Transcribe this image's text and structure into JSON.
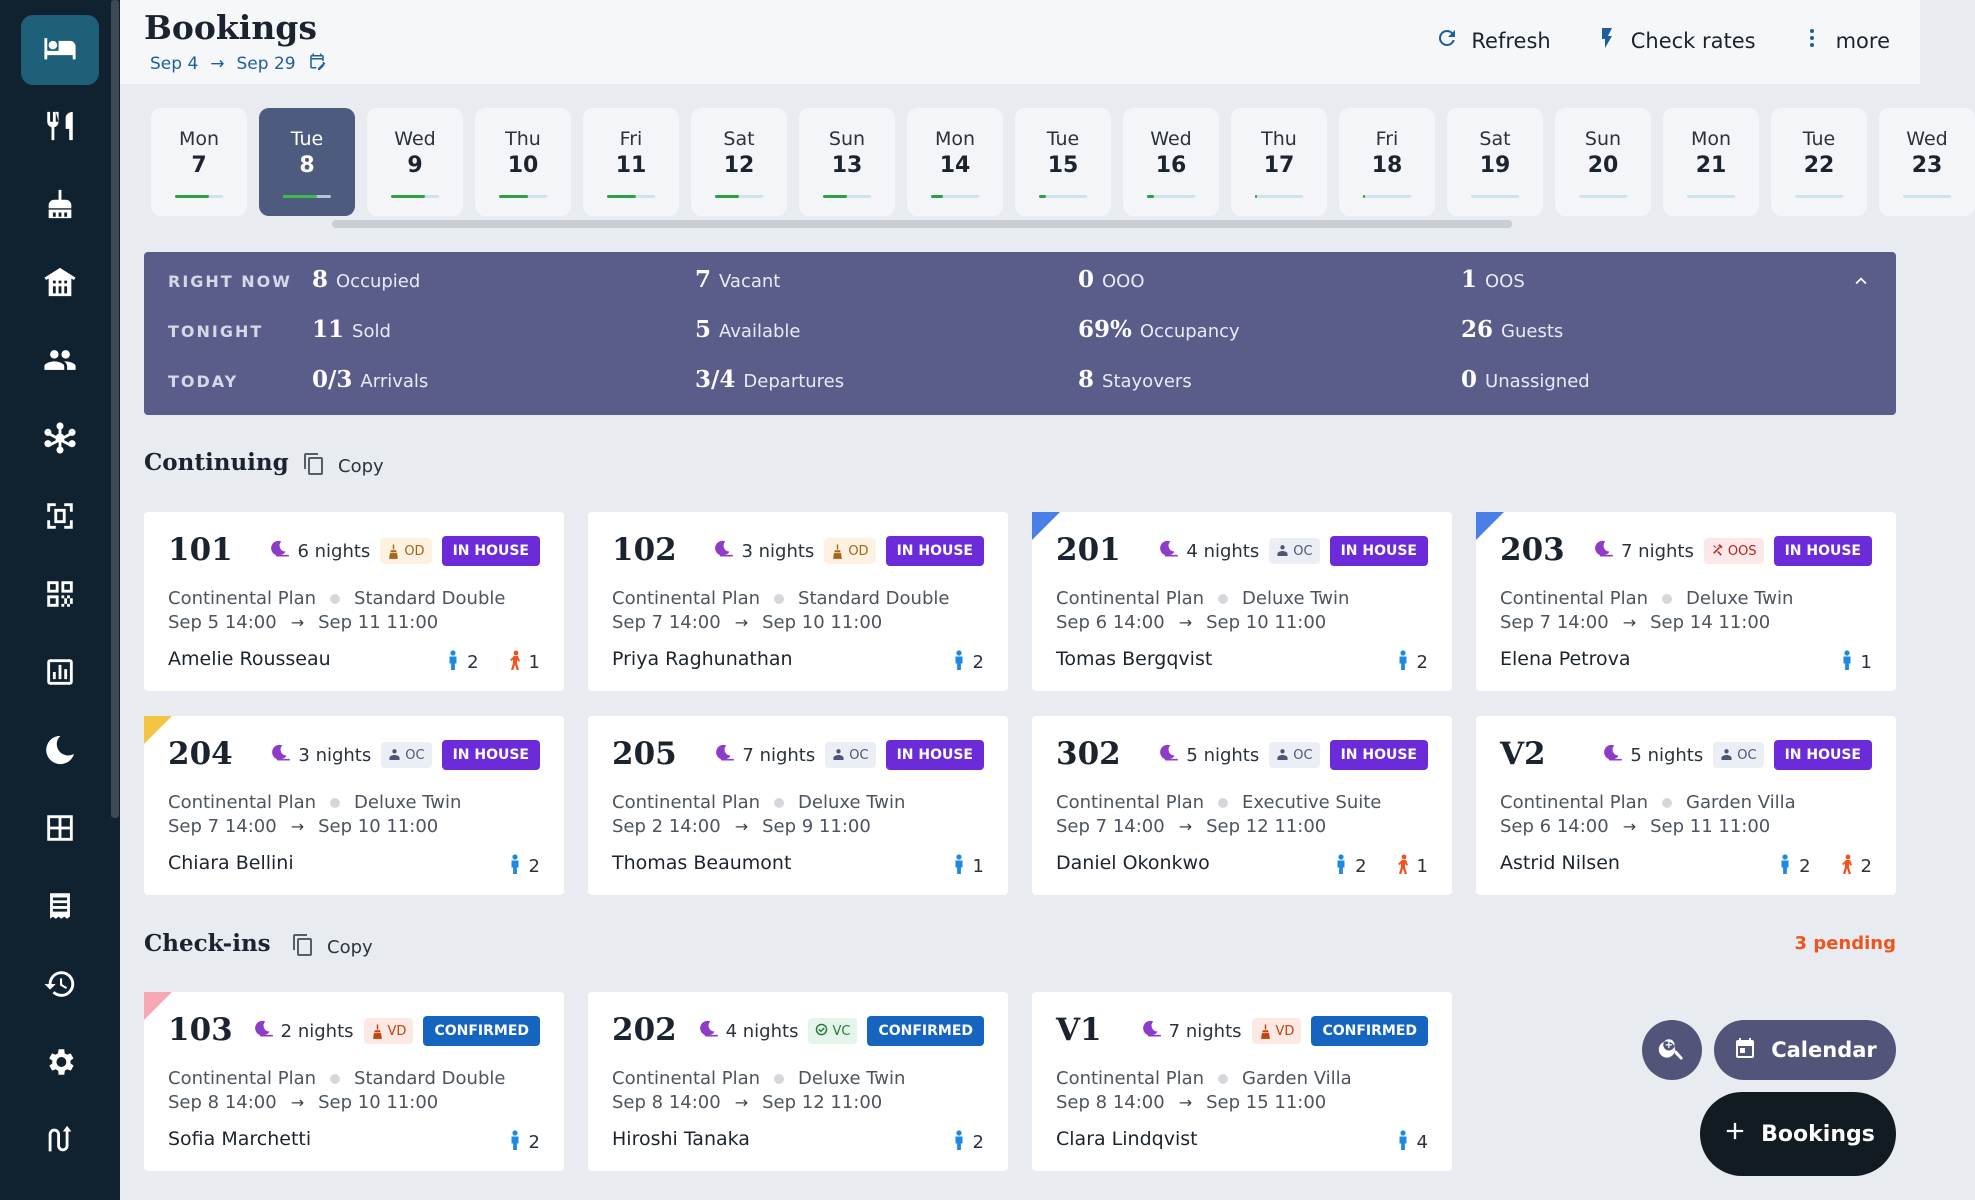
{
  "sidebar": {
    "items": [
      {
        "icon": "bed-icon",
        "active": true
      },
      {
        "icon": "restaurant-icon"
      },
      {
        "icon": "housekeeping-icon"
      },
      {
        "icon": "hotel-building-icon"
      },
      {
        "icon": "people-icon"
      },
      {
        "icon": "network-icon"
      },
      {
        "icon": "scan-frame-icon"
      },
      {
        "icon": "qr-code-icon"
      },
      {
        "icon": "reports-icon"
      },
      {
        "icon": "night-audit-icon"
      },
      {
        "icon": "floor-plan-icon"
      },
      {
        "icon": "invoice-icon"
      },
      {
        "icon": "history-icon"
      },
      {
        "icon": "settings-icon"
      },
      {
        "icon": "integration-icon"
      }
    ]
  },
  "header": {
    "title": "Bookings",
    "date_from": "Sep 4",
    "date_to": "Sep 29",
    "refresh_label": "Refresh",
    "check_rates_label": "Check rates",
    "more_label": "more"
  },
  "days": [
    {
      "name": "Mon",
      "num": "7",
      "fill": 0.7
    },
    {
      "name": "Tue",
      "num": "8",
      "fill": 0.7,
      "selected": true
    },
    {
      "name": "Wed",
      "num": "9",
      "fill": 0.7
    },
    {
      "name": "Thu",
      "num": "10",
      "fill": 0.6
    },
    {
      "name": "Fri",
      "num": "11",
      "fill": 0.6
    },
    {
      "name": "Sat",
      "num": "12",
      "fill": 0.5
    },
    {
      "name": "Sun",
      "num": "13",
      "fill": 0.5
    },
    {
      "name": "Mon",
      "num": "14",
      "fill": 0.25
    },
    {
      "name": "Tue",
      "num": "15",
      "fill": 0.15
    },
    {
      "name": "Wed",
      "num": "16",
      "fill": 0.15
    },
    {
      "name": "Thu",
      "num": "17",
      "fill": 0.05
    },
    {
      "name": "Fri",
      "num": "18",
      "fill": 0.05
    },
    {
      "name": "Sat",
      "num": "19",
      "fill": 0
    },
    {
      "name": "Sun",
      "num": "20",
      "fill": 0
    },
    {
      "name": "Mon",
      "num": "21",
      "fill": 0
    },
    {
      "name": "Tue",
      "num": "22",
      "fill": 0
    },
    {
      "name": "Wed",
      "num": "23",
      "fill": 0
    }
  ],
  "stats": {
    "rows": [
      {
        "label": "RIGHT NOW",
        "cells": [
          {
            "value": "8",
            "label": "Occupied"
          },
          {
            "value": "7",
            "label": "Vacant"
          },
          {
            "value": "0",
            "label": "OOO"
          },
          {
            "value": "1",
            "label": "OOS"
          }
        ]
      },
      {
        "label": "TONIGHT",
        "cells": [
          {
            "value": "11",
            "label": "Sold"
          },
          {
            "value": "5",
            "label": "Available"
          },
          {
            "value": "69%",
            "label": "Occupancy"
          },
          {
            "value": "26",
            "label": "Guests"
          }
        ]
      },
      {
        "label": "TODAY",
        "cells": [
          {
            "value": "0/3",
            "label": "Arrivals"
          },
          {
            "value": "3/4",
            "label": "Departures"
          },
          {
            "value": "8",
            "label": "Stayovers"
          },
          {
            "value": "0",
            "label": "Unassigned"
          }
        ]
      }
    ]
  },
  "continuing": {
    "title": "Continuing",
    "copy_label": "Copy",
    "cards": [
      {
        "room": "101",
        "nights": "6 nights",
        "hk": "OD",
        "hk_type": "od",
        "status": "IN HOUSE",
        "plan": "Continental Plan",
        "roomtype": "Standard Double",
        "checkin": "Sep 5 14:00",
        "checkout": "Sep 11 11:00",
        "guest": "Amelie Rousseau",
        "adults": "2",
        "children": "1"
      },
      {
        "room": "102",
        "nights": "3 nights",
        "hk": "OD",
        "hk_type": "od",
        "status": "IN HOUSE",
        "plan": "Continental Plan",
        "roomtype": "Standard Double",
        "checkin": "Sep 7 14:00",
        "checkout": "Sep 10 11:00",
        "guest": "Priya Raghunathan",
        "adults": "2",
        "children": ""
      },
      {
        "room": "201",
        "nights": "4 nights",
        "hk": "OC",
        "hk_type": "oc",
        "status": "IN HOUSE",
        "plan": "Continental Plan",
        "roomtype": "Deluxe Twin",
        "checkin": "Sep 6 14:00",
        "checkout": "Sep 10 11:00",
        "guest": "Tomas Bergqvist",
        "adults": "2",
        "children": "",
        "flag": "#4a7fe8"
      },
      {
        "room": "203",
        "nights": "7 nights",
        "hk": "OOS",
        "hk_type": "oos",
        "status": "IN HOUSE",
        "plan": "Continental Plan",
        "roomtype": "Deluxe Twin",
        "checkin": "Sep 7 14:00",
        "checkout": "Sep 14 11:00",
        "guest": "Elena Petrova",
        "adults": "1",
        "children": "",
        "flag": "#4a7fe8"
      },
      {
        "room": "204",
        "nights": "3 nights",
        "hk": "OC",
        "hk_type": "oc",
        "status": "IN HOUSE",
        "plan": "Continental Plan",
        "roomtype": "Deluxe Twin",
        "checkin": "Sep 7 14:00",
        "checkout": "Sep 10 11:00",
        "guest": "Chiara Bellini",
        "adults": "2",
        "children": "",
        "flag": "#f4c542"
      },
      {
        "room": "205",
        "nights": "7 nights",
        "hk": "OC",
        "hk_type": "oc",
        "status": "IN HOUSE",
        "plan": "Continental Plan",
        "roomtype": "Deluxe Twin",
        "checkin": "Sep 2 14:00",
        "checkout": "Sep 9 11:00",
        "guest": "Thomas Beaumont",
        "adults": "1",
        "children": ""
      },
      {
        "room": "302",
        "nights": "5 nights",
        "hk": "OC",
        "hk_type": "oc",
        "status": "IN HOUSE",
        "plan": "Continental Plan",
        "roomtype": "Executive Suite",
        "checkin": "Sep 7 14:00",
        "checkout": "Sep 12 11:00",
        "guest": "Daniel Okonkwo",
        "adults": "2",
        "children": "1"
      },
      {
        "room": "V2",
        "nights": "5 nights",
        "hk": "OC",
        "hk_type": "oc",
        "status": "IN HOUSE",
        "plan": "Continental Plan",
        "roomtype": "Garden Villa",
        "checkin": "Sep 6 14:00",
        "checkout": "Sep 11 11:00",
        "guest": "Astrid Nilsen",
        "adults": "2",
        "children": "2"
      }
    ]
  },
  "checkins": {
    "title": "Check-ins",
    "copy_label": "Copy",
    "pending": "3 pending",
    "cards": [
      {
        "room": "103",
        "nights": "2 nights",
        "hk": "VD",
        "hk_type": "vd",
        "status": "CONFIRMED",
        "plan": "Continental Plan",
        "roomtype": "Standard Double",
        "checkin": "Sep 8 14:00",
        "checkout": "Sep 10 11:00",
        "guest": "Sofia Marchetti",
        "adults": "2",
        "children": "",
        "flag": "#f7a8b5"
      },
      {
        "room": "202",
        "nights": "4 nights",
        "hk": "VC",
        "hk_type": "vc",
        "status": "CONFIRMED",
        "plan": "Continental Plan",
        "roomtype": "Deluxe Twin",
        "checkin": "Sep 8 14:00",
        "checkout": "Sep 12 11:00",
        "guest": "Hiroshi Tanaka",
        "adults": "2",
        "children": ""
      },
      {
        "room": "V1",
        "nights": "7 nights",
        "hk": "VD",
        "hk_type": "vd",
        "status": "CONFIRMED",
        "plan": "Continental Plan",
        "roomtype": "Garden Villa",
        "checkin": "Sep 8 14:00",
        "checkout": "Sep 15 11:00",
        "guest": "Clara Lindqvist",
        "adults": "4",
        "children": ""
      }
    ]
  },
  "fab": {
    "calendar_label": "Calendar",
    "bookings_label": "Bookings"
  },
  "colors": {
    "sidebar": "#10222f",
    "sidebar_active": "#1e5f7a",
    "stats_panel": "#5a5d8a",
    "in_house": "#6c2bd9",
    "confirmed": "#1565c0",
    "pending": "#f0531c",
    "nights_icon": "#8e3cc7",
    "adult_icon": "#1e88e5",
    "child_icon": "#f4511e"
  }
}
